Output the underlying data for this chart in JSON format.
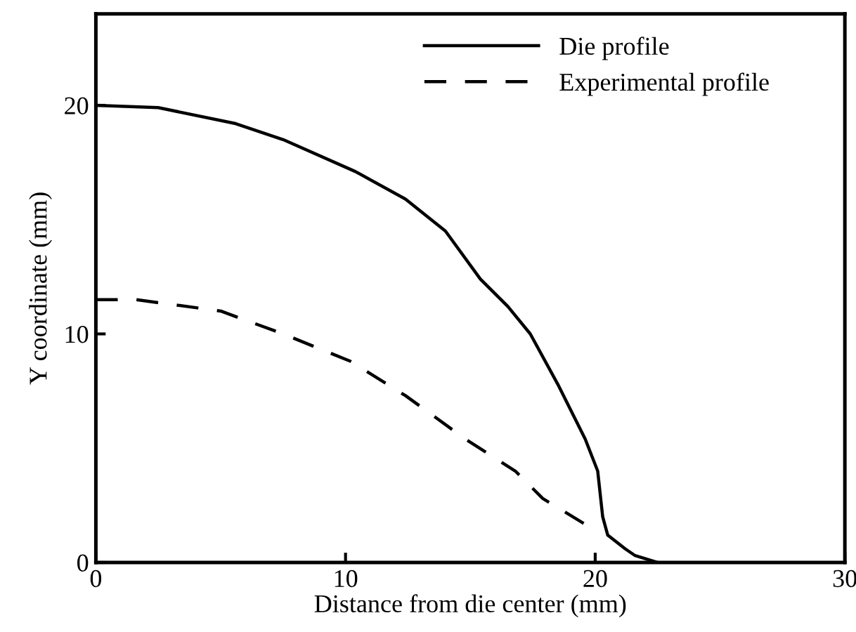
{
  "chart_data": {
    "type": "line",
    "xlabel": "Distance from die center (mm)",
    "ylabel": "Y coordinate (mm)",
    "xlim": [
      0,
      30
    ],
    "ylim": [
      0,
      24
    ],
    "xticks": [
      0,
      10,
      20,
      30
    ],
    "yticks": [
      0,
      10,
      20
    ],
    "grid": false,
    "legend": "top right",
    "marker": "none",
    "series": [
      {
        "name": "Die profile",
        "color": "#000000",
        "line_style": "solid",
        "x": [
          0,
          2.5,
          5.6,
          7.5,
          10.4,
          12.4,
          14,
          15.4,
          16.5,
          17.4,
          18.5,
          19.6,
          20.1,
          20.3,
          20.5,
          21.2,
          21.6,
          22.5
        ],
        "values": [
          20,
          19.9,
          19.2,
          18.5,
          17.1,
          15.9,
          14.5,
          12.4,
          11.2,
          10,
          7.8,
          5.4,
          4.0,
          2.0,
          1.2,
          0.6,
          0.3,
          0
        ]
      },
      {
        "name": "Experimental profile",
        "color": "#000000",
        "line_style": "dashed",
        "x": [
          0,
          1.6,
          5.0,
          7.5,
          10.2,
          12.4,
          14.8,
          16.8,
          17.9,
          19.7
        ],
        "values": [
          11.5,
          11.5,
          11.0,
          10.0,
          8.8,
          7.3,
          5.4,
          4.0,
          2.8,
          1.6
        ]
      }
    ]
  }
}
